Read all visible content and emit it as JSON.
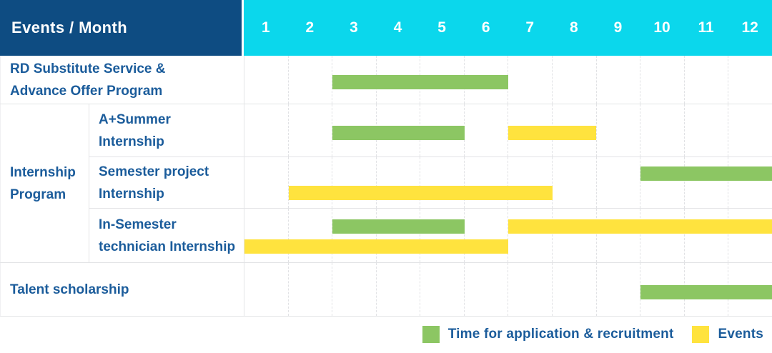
{
  "header": {
    "corner_label": "Events / Month",
    "months": [
      "1",
      "2",
      "3",
      "4",
      "5",
      "6",
      "7",
      "8",
      "9",
      "10",
      "11",
      "12"
    ]
  },
  "colors": {
    "header_dark_blue": "#0e4c82",
    "header_cyan": "#0bd7ec",
    "label_blue": "#1b5c9b",
    "recruitment": "#8cc663",
    "events": "#ffe33e",
    "gridline": "#e3e4e6"
  },
  "legend": {
    "recruitment_label": "Time for application & recruitment",
    "events_label": "Events"
  },
  "chart_data": {
    "type": "bar",
    "subtype": "gantt-timeline",
    "title": "Events / Month",
    "x_axis_months": [
      1,
      2,
      3,
      4,
      5,
      6,
      7,
      8,
      9,
      10,
      11,
      12
    ],
    "bar_types": {
      "recruitment": "Time for application & recruitment",
      "events": "Events"
    },
    "group_label_lines": [
      "Internship",
      "Program"
    ],
    "rows": [
      {
        "id": "rd-substitute",
        "label_lines": [
          "RD Substitute Service &",
          "Advance Offer Program"
        ],
        "lines": 1,
        "bars": [
          {
            "type": "recruitment",
            "start": 3,
            "end": 7,
            "line": 1
          }
        ]
      },
      {
        "id": "a-summer-internship",
        "group": "Internship Program",
        "label_lines": [
          "A+Summer",
          "Internship"
        ],
        "lines": 1,
        "bars": [
          {
            "type": "recruitment",
            "start": 3,
            "end": 6,
            "line": 1
          },
          {
            "type": "events",
            "start": 7,
            "end": 9,
            "line": 1
          }
        ]
      },
      {
        "id": "semester-project-internship",
        "group": "Internship Program",
        "label_lines": [
          "Semester project",
          "Internship"
        ],
        "lines": 2,
        "bars": [
          {
            "type": "recruitment",
            "start": 10,
            "end": 13,
            "line": 1
          },
          {
            "type": "events",
            "start": 2,
            "end": 8,
            "line": 2
          }
        ]
      },
      {
        "id": "in-semester-technician-internship",
        "group": "Internship Program",
        "label_lines": [
          "In-Semester",
          "technician Internship"
        ],
        "lines": 2,
        "bars": [
          {
            "type": "recruitment",
            "start": 3,
            "end": 6,
            "line": 1
          },
          {
            "type": "events",
            "start": 7,
            "end": 13,
            "line": 1
          },
          {
            "type": "events",
            "start": 1,
            "end": 7,
            "line": 2
          }
        ]
      },
      {
        "id": "talent-scholarship",
        "label_lines": [
          "Talent scholarship"
        ],
        "lines": 1,
        "bars": [
          {
            "type": "recruitment",
            "start": 10,
            "end": 13,
            "line": 1
          }
        ]
      }
    ]
  }
}
